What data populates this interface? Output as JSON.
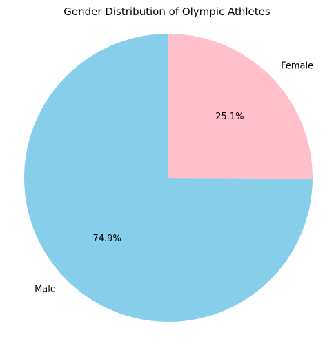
{
  "chart_data": {
    "type": "pie",
    "title": "Gender Distribution of Olympic Athletes",
    "slices": [
      {
        "label": "Female",
        "value": 25.1,
        "pct_label": "25.1%",
        "color": "#ffc0cb"
      },
      {
        "label": "Male",
        "value": 74.9,
        "pct_label": "74.9%",
        "color": "#87ceeb"
      }
    ],
    "start_angle_deg": 90,
    "direction": "clockwise",
    "legend": "none"
  }
}
